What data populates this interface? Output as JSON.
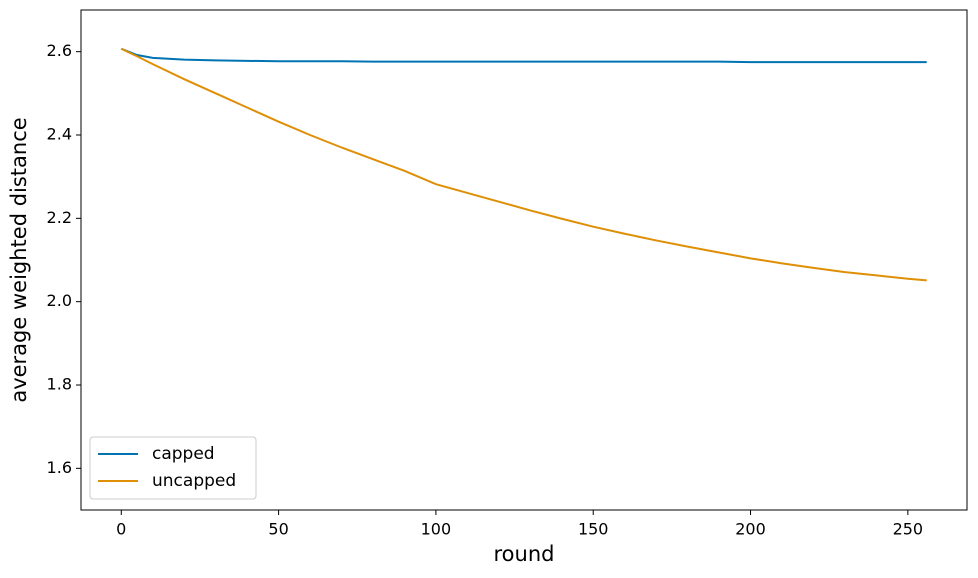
{
  "chart_data": {
    "type": "line",
    "x_label": "round",
    "y_label": "average weighted distance",
    "x": [
      0,
      5,
      10,
      20,
      30,
      40,
      50,
      60,
      70,
      80,
      90,
      100,
      110,
      120,
      130,
      140,
      150,
      160,
      170,
      180,
      190,
      200,
      210,
      220,
      230,
      240,
      250,
      256
    ],
    "series": [
      {
        "name": "capped",
        "color": "#0173b2",
        "values": [
          2.607,
          2.592,
          2.585,
          2.581,
          2.579,
          2.578,
          2.577,
          2.577,
          2.577,
          2.576,
          2.576,
          2.576,
          2.576,
          2.576,
          2.576,
          2.576,
          2.576,
          2.576,
          2.576,
          2.576,
          2.576,
          2.575,
          2.575,
          2.575,
          2.575,
          2.575,
          2.575,
          2.575
        ]
      },
      {
        "name": "uncapped",
        "color": "#de8f05",
        "values": [
          2.607,
          2.589,
          2.57,
          2.534,
          2.5,
          2.466,
          2.432,
          2.4,
          2.37,
          2.342,
          2.314,
          2.282,
          2.261,
          2.24,
          2.219,
          2.199,
          2.18,
          2.163,
          2.147,
          2.132,
          2.118,
          2.104,
          2.092,
          2.081,
          2.071,
          2.063,
          2.055,
          2.051
        ]
      }
    ],
    "xlim": [
      -12.8,
      268.8
    ],
    "xticks": [
      0,
      50,
      100,
      150,
      200,
      250
    ],
    "ylim": [
      1.5,
      2.7
    ],
    "yticks": [
      {
        "value": 1.6,
        "label": "1.6"
      },
      {
        "value": 1.8,
        "label": "1.8"
      },
      {
        "value": 2.0,
        "label": "2.0"
      },
      {
        "value": 2.2,
        "label": "2.2"
      },
      {
        "value": 2.4,
        "label": "2.4"
      },
      {
        "value": 2.6,
        "label": "2.6"
      }
    ],
    "legend": "lower left"
  }
}
